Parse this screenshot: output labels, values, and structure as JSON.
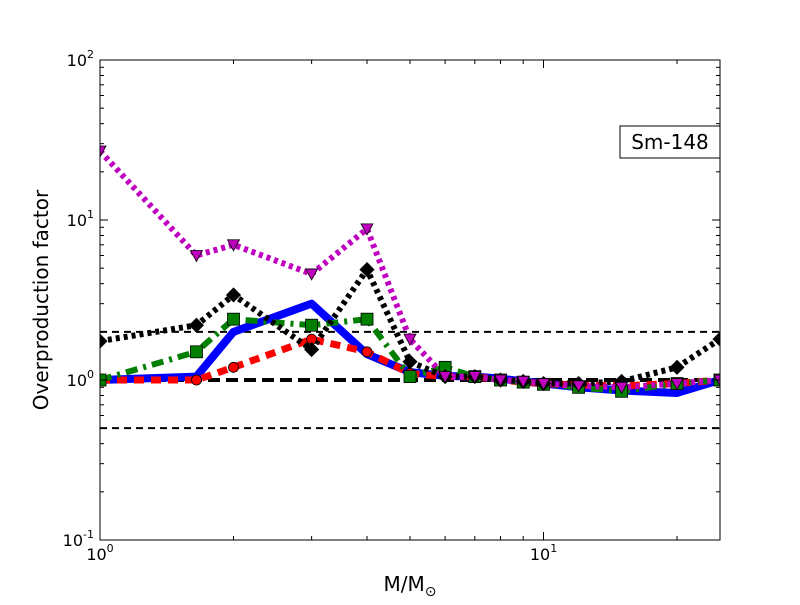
{
  "chart_data": {
    "type": "line",
    "title": "",
    "xlabel": "M/M",
    "xlabel_subscript": "⊙",
    "ylabel": "Overproduction factor",
    "xscale": "log",
    "yscale": "log",
    "xlim": [
      1,
      25
    ],
    "ylim": [
      0.1,
      100
    ],
    "grid": false,
    "annotation": "Sm-148",
    "annotation_placement": "top-right",
    "x_ticks": [
      {
        "value": 1,
        "base": "10",
        "exp": "0"
      },
      {
        "value": 10,
        "base": "10",
        "exp": "1"
      }
    ],
    "y_ticks": [
      {
        "value": 0.1,
        "base": "10",
        "exp": "-1"
      },
      {
        "value": 1,
        "base": "10",
        "exp": "0"
      },
      {
        "value": 10,
        "base": "10",
        "exp": "1"
      },
      {
        "value": 100,
        "base": "10",
        "exp": "2"
      }
    ],
    "reference_lines": [
      {
        "y": 0.5,
        "style": "dashed"
      },
      {
        "y": 1.0,
        "style": "dashed-thick"
      },
      {
        "y": 2.0,
        "style": "dashed"
      }
    ],
    "series": [
      {
        "color": "#0000ff",
        "line": "solid",
        "marker": "none",
        "x": [
          1,
          1.65,
          2,
          3,
          4,
          5,
          6,
          7,
          8,
          9,
          10,
          12,
          15,
          20,
          25
        ],
        "y": [
          1.0,
          1.05,
          2.0,
          3.0,
          1.45,
          1.12,
          1.06,
          1.05,
          1.02,
          0.98,
          0.95,
          0.9,
          0.86,
          0.83,
          1.0
        ]
      },
      {
        "color": "#ff0000",
        "line": "dashed",
        "marker": "circle",
        "x": [
          1,
          1.65,
          2,
          3,
          4,
          5,
          6,
          7,
          8,
          9,
          10,
          12,
          15,
          20,
          25
        ],
        "y": [
          1.0,
          1.0,
          1.2,
          1.8,
          1.5,
          1.1,
          1.05,
          1.05,
          1.0,
          0.97,
          0.95,
          0.93,
          0.92,
          0.95,
          1.0
        ]
      },
      {
        "color": "#007f00",
        "line": "dashdot",
        "marker": "square",
        "x": [
          1,
          1.65,
          2,
          3,
          4,
          5,
          6,
          7,
          8,
          9,
          10,
          12,
          15,
          20,
          25
        ],
        "y": [
          1.0,
          1.5,
          2.4,
          2.2,
          2.4,
          1.05,
          1.2,
          1.05,
          1.0,
          0.97,
          0.94,
          0.9,
          0.85,
          0.95,
          1.0
        ]
      },
      {
        "color": "#000000",
        "line": "dotted",
        "marker": "diamond",
        "x": [
          1,
          1.65,
          2,
          3,
          4,
          5,
          6,
          7,
          8,
          9,
          10,
          12,
          15,
          20,
          25
        ],
        "y": [
          1.75,
          2.2,
          3.4,
          1.55,
          4.9,
          1.3,
          1.05,
          1.05,
          1.0,
          0.98,
          0.95,
          0.95,
          0.98,
          1.2,
          1.8
        ]
      },
      {
        "color": "#bf00bf",
        "line": "dotted",
        "marker": "triangle-down",
        "x": [
          1,
          1.65,
          2,
          3,
          4,
          5,
          6,
          7,
          8,
          9,
          10,
          12,
          15,
          20,
          25
        ],
        "y": [
          27,
          6.0,
          7.0,
          4.6,
          8.8,
          1.8,
          1.05,
          1.05,
          1.0,
          0.98,
          0.95,
          0.92,
          0.9,
          0.95,
          1.0
        ]
      }
    ]
  }
}
